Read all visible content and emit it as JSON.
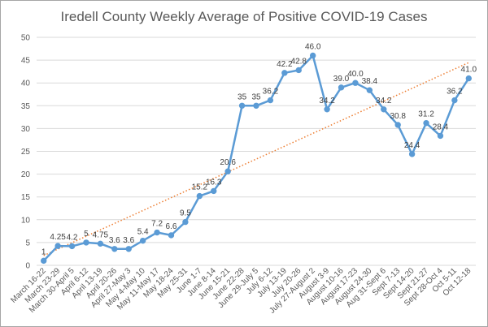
{
  "chart_data": {
    "type": "line",
    "title": "Iredell County Weekly Average of Positive COVID-19 Cases",
    "xlabel": "",
    "ylabel": "",
    "ylim": [
      0,
      50
    ],
    "yticks": [
      "0",
      "5",
      "10",
      "15",
      "20",
      "25",
      "30",
      "35",
      "40",
      "45",
      "50"
    ],
    "grid": true,
    "legend": "none",
    "categories": [
      "March 16-22",
      "March 23-29",
      "March 30-April 5",
      "April 6-12",
      "April 13-19",
      "April 20-26",
      "April 27-May 3",
      "May 4-May 10",
      "May 11-May 17",
      "May 18-24",
      "May 25-31",
      "June 1-7",
      "June 8-14",
      "June 15-21",
      "June 22-28",
      "June 29-July 5",
      "July 6-12",
      "July 13-19",
      "July 20-26",
      "July 27-August 2",
      "August 3-9",
      "August 10-16",
      "August 17-23",
      "August 24-30",
      "Aug 31-Sept 6",
      "Sept 7-13",
      "Sept 14-20",
      "Sept 21-27",
      "Sept 28-Oct 4",
      "Oct 5-11",
      "Oct 12-18"
    ],
    "series": [
      {
        "color": "#5b9bd5",
        "values": [
          1,
          4.25,
          4.2,
          5,
          4.75,
          3.6,
          3.6,
          5.4,
          7.2,
          6.6,
          9.5,
          15.2,
          16.3,
          20.6,
          35,
          35,
          36.2,
          42.2,
          42.8,
          46.0,
          34.2,
          39.0,
          40.0,
          38.4,
          34.2,
          30.8,
          24.4,
          31.2,
          28.4,
          36.2,
          41.0
        ],
        "labels": [
          "1",
          "4.25",
          "4.2",
          "5",
          "4.75",
          "3.6",
          "3.6",
          "5.4",
          "7.2",
          "6.6",
          "9.5",
          "15.2",
          "16.3",
          "20.6",
          "35",
          "35",
          "36.2",
          "42.2",
          "42.8",
          "46.0",
          "34.2",
          "39.0",
          "40.0",
          "38.4",
          "34.2",
          "30.8",
          "24.4",
          "31.2",
          "28.4",
          "36.2",
          "41.0"
        ]
      }
    ],
    "trendline": {
      "type": "linear",
      "color": "#ed7d31",
      "style": "dotted"
    }
  }
}
